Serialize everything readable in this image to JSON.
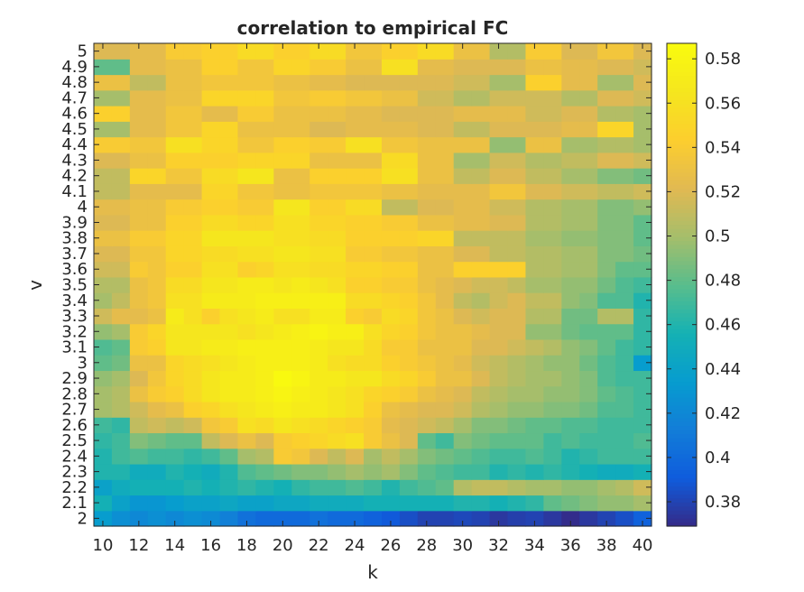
{
  "chart_data": {
    "type": "heatmap",
    "title": "correlation to empirical FC",
    "xlabel": "k",
    "ylabel": "v",
    "x": [
      10,
      11,
      12,
      13,
      14,
      15,
      16,
      17,
      18,
      19,
      20,
      21,
      22,
      23,
      24,
      25,
      26,
      27,
      28,
      29,
      30,
      31,
      32,
      33,
      34,
      35,
      36,
      37,
      38,
      39,
      40
    ],
    "x_tick_labels": [
      "10",
      "12",
      "14",
      "16",
      "18",
      "20",
      "22",
      "24",
      "26",
      "28",
      "30",
      "32",
      "34",
      "36",
      "38",
      "40"
    ],
    "y": [
      2,
      2.1,
      2.2,
      2.3,
      2.4,
      2.5,
      2.6,
      2.7,
      2.8,
      2.9,
      3,
      3.1,
      3.2,
      3.3,
      3.4,
      3.5,
      3.6,
      3.7,
      3.8,
      3.9,
      4,
      4.1,
      4.2,
      4.3,
      4.4,
      4.5,
      4.6,
      4.7,
      4.8,
      4.9,
      5
    ],
    "y_tick_labels": [
      "2",
      "2.1",
      "2.2",
      "2.3",
      "2.4",
      "2.5",
      "2.6",
      "2.7",
      "2.8",
      "2.9",
      "3",
      "3.1",
      "3.2",
      "3.3",
      "3.4",
      "3.5",
      "3.6",
      "3.7",
      "3.8",
      "3.9",
      "4",
      "4.1",
      "4.2",
      "4.3",
      "4.4",
      "4.5",
      "4.6",
      "4.7",
      "4.8",
      "4.9",
      "5"
    ],
    "colorbar": {
      "ticks": [
        0.38,
        0.4,
        0.42,
        0.44,
        0.46,
        0.48,
        0.5,
        0.52,
        0.54,
        0.56,
        0.58
      ],
      "tick_labels": [
        "0.38",
        "0.4",
        "0.42",
        "0.44",
        "0.46",
        "0.48",
        "0.5",
        "0.52",
        "0.54",
        "0.56",
        "0.58"
      ],
      "clim": [
        0.369,
        0.587
      ],
      "colormap": "parula"
    },
    "values": [
      [
        0.435,
        0.425,
        0.42,
        0.425,
        0.42,
        0.425,
        0.422,
        0.415,
        0.405,
        0.4,
        0.4,
        0.4,
        0.405,
        0.4,
        0.4,
        0.395,
        0.39,
        0.385,
        0.38,
        0.38,
        0.382,
        0.38,
        0.375,
        0.378,
        0.38,
        0.375,
        0.37,
        0.375,
        0.38,
        0.385,
        0.395
      ],
      [
        0.455,
        0.44,
        0.43,
        0.43,
        0.435,
        0.44,
        0.44,
        0.445,
        0.44,
        0.44,
        0.445,
        0.445,
        0.45,
        0.45,
        0.45,
        0.455,
        0.455,
        0.455,
        0.455,
        0.455,
        0.46,
        0.46,
        0.455,
        0.46,
        0.465,
        0.48,
        0.485,
        0.49,
        0.495,
        0.495,
        0.5
      ],
      [
        0.44,
        0.45,
        0.455,
        0.455,
        0.455,
        0.46,
        0.455,
        0.46,
        0.465,
        0.46,
        0.455,
        0.465,
        0.47,
        0.47,
        0.475,
        0.47,
        0.46,
        0.47,
        0.475,
        0.48,
        0.505,
        0.51,
        0.51,
        0.505,
        0.5,
        0.5,
        0.495,
        0.495,
        0.5,
        0.505,
        0.515
      ],
      [
        0.46,
        0.46,
        0.45,
        0.45,
        0.46,
        0.455,
        0.45,
        0.46,
        0.475,
        0.48,
        0.485,
        0.49,
        0.49,
        0.495,
        0.5,
        0.495,
        0.5,
        0.49,
        0.48,
        0.475,
        0.47,
        0.47,
        0.46,
        0.465,
        0.46,
        0.465,
        0.46,
        0.455,
        0.45,
        0.45,
        0.455
      ],
      [
        0.46,
        0.47,
        0.475,
        0.47,
        0.47,
        0.465,
        0.47,
        0.48,
        0.5,
        0.505,
        0.54,
        0.535,
        0.52,
        0.51,
        0.52,
        0.5,
        0.51,
        0.5,
        0.49,
        0.485,
        0.48,
        0.475,
        0.47,
        0.47,
        0.475,
        0.47,
        0.46,
        0.465,
        0.47,
        0.47,
        0.47
      ],
      [
        0.465,
        0.47,
        0.49,
        0.485,
        0.48,
        0.48,
        0.51,
        0.52,
        0.53,
        0.52,
        0.54,
        0.545,
        0.55,
        0.555,
        0.56,
        0.54,
        0.53,
        0.52,
        0.48,
        0.47,
        0.49,
        0.485,
        0.48,
        0.48,
        0.48,
        0.47,
        0.475,
        0.47,
        0.47,
        0.47,
        0.475
      ],
      [
        0.47,
        0.465,
        0.51,
        0.515,
        0.51,
        0.515,
        0.535,
        0.54,
        0.56,
        0.555,
        0.565,
        0.56,
        0.555,
        0.55,
        0.545,
        0.54,
        0.525,
        0.52,
        0.515,
        0.51,
        0.5,
        0.49,
        0.49,
        0.485,
        0.48,
        0.48,
        0.475,
        0.475,
        0.47,
        0.47,
        0.47
      ],
      [
        0.5,
        0.505,
        0.515,
        0.525,
        0.53,
        0.545,
        0.55,
        0.56,
        0.565,
        0.57,
        0.575,
        0.57,
        0.57,
        0.565,
        0.56,
        0.545,
        0.53,
        0.525,
        0.52,
        0.52,
        0.515,
        0.505,
        0.5,
        0.495,
        0.495,
        0.49,
        0.49,
        0.485,
        0.475,
        0.475,
        0.47
      ],
      [
        0.5,
        0.505,
        0.53,
        0.54,
        0.545,
        0.555,
        0.565,
        0.57,
        0.57,
        0.575,
        0.58,
        0.575,
        0.57,
        0.565,
        0.56,
        0.55,
        0.545,
        0.54,
        0.53,
        0.525,
        0.52,
        0.51,
        0.505,
        0.5,
        0.5,
        0.495,
        0.495,
        0.49,
        0.48,
        0.475,
        0.47
      ],
      [
        0.495,
        0.5,
        0.52,
        0.535,
        0.55,
        0.555,
        0.565,
        0.57,
        0.57,
        0.575,
        0.585,
        0.58,
        0.57,
        0.57,
        0.565,
        0.565,
        0.555,
        0.55,
        0.54,
        0.53,
        0.53,
        0.52,
        0.51,
        0.505,
        0.5,
        0.5,
        0.495,
        0.49,
        0.475,
        0.47,
        0.47
      ],
      [
        0.48,
        0.485,
        0.53,
        0.53,
        0.55,
        0.555,
        0.56,
        0.565,
        0.57,
        0.575,
        0.575,
        0.575,
        0.57,
        0.56,
        0.555,
        0.555,
        0.545,
        0.54,
        0.535,
        0.53,
        0.525,
        0.515,
        0.51,
        0.505,
        0.5,
        0.495,
        0.495,
        0.485,
        0.475,
        0.47,
        0.435
      ],
      [
        0.475,
        0.48,
        0.54,
        0.545,
        0.565,
        0.565,
        0.57,
        0.57,
        0.575,
        0.575,
        0.575,
        0.575,
        0.57,
        0.565,
        0.565,
        0.555,
        0.54,
        0.54,
        0.53,
        0.53,
        0.53,
        0.52,
        0.52,
        0.515,
        0.51,
        0.505,
        0.495,
        0.49,
        0.48,
        0.47,
        0.465
      ],
      [
        0.495,
        0.5,
        0.54,
        0.55,
        0.565,
        0.565,
        0.565,
        0.565,
        0.56,
        0.565,
        0.57,
        0.575,
        0.58,
        0.575,
        0.575,
        0.56,
        0.55,
        0.545,
        0.535,
        0.53,
        0.53,
        0.525,
        0.52,
        0.52,
        0.495,
        0.495,
        0.485,
        0.48,
        0.48,
        0.48,
        0.465
      ],
      [
        0.515,
        0.525,
        0.525,
        0.53,
        0.57,
        0.56,
        0.545,
        0.56,
        0.565,
        0.57,
        0.56,
        0.56,
        0.57,
        0.57,
        0.545,
        0.54,
        0.555,
        0.55,
        0.535,
        0.53,
        0.52,
        0.515,
        0.52,
        0.52,
        0.505,
        0.505,
        0.485,
        0.485,
        0.505,
        0.505,
        0.465
      ],
      [
        0.5,
        0.51,
        0.53,
        0.535,
        0.56,
        0.56,
        0.57,
        0.57,
        0.57,
        0.575,
        0.575,
        0.575,
        0.575,
        0.575,
        0.555,
        0.555,
        0.55,
        0.545,
        0.535,
        0.525,
        0.51,
        0.505,
        0.515,
        0.52,
        0.51,
        0.51,
        0.495,
        0.49,
        0.475,
        0.475,
        0.46
      ],
      [
        0.505,
        0.505,
        0.53,
        0.535,
        0.555,
        0.555,
        0.565,
        0.565,
        0.57,
        0.57,
        0.565,
        0.57,
        0.565,
        0.56,
        0.545,
        0.545,
        0.54,
        0.54,
        0.53,
        0.525,
        0.52,
        0.515,
        0.515,
        0.51,
        0.5,
        0.5,
        0.495,
        0.495,
        0.485,
        0.475,
        0.47
      ],
      [
        0.515,
        0.515,
        0.54,
        0.535,
        0.545,
        0.545,
        0.56,
        0.56,
        0.545,
        0.55,
        0.56,
        0.56,
        0.555,
        0.555,
        0.55,
        0.55,
        0.545,
        0.545,
        0.53,
        0.53,
        0.545,
        0.545,
        0.545,
        0.545,
        0.505,
        0.505,
        0.5,
        0.5,
        0.49,
        0.48,
        0.48
      ],
      [
        0.52,
        0.52,
        0.535,
        0.535,
        0.55,
        0.55,
        0.555,
        0.555,
        0.56,
        0.56,
        0.565,
        0.565,
        0.56,
        0.56,
        0.54,
        0.54,
        0.535,
        0.535,
        0.53,
        0.53,
        0.52,
        0.52,
        0.51,
        0.51,
        0.505,
        0.505,
        0.5,
        0.5,
        0.49,
        0.49,
        0.485
      ],
      [
        0.53,
        0.53,
        0.54,
        0.54,
        0.55,
        0.55,
        0.565,
        0.565,
        0.565,
        0.565,
        0.56,
        0.56,
        0.555,
        0.555,
        0.545,
        0.545,
        0.545,
        0.545,
        0.55,
        0.55,
        0.51,
        0.51,
        0.51,
        0.51,
        0.5,
        0.5,
        0.495,
        0.495,
        0.49,
        0.49,
        0.48
      ],
      [
        0.52,
        0.52,
        0.53,
        0.53,
        0.545,
        0.545,
        0.555,
        0.555,
        0.55,
        0.55,
        0.56,
        0.56,
        0.55,
        0.55,
        0.545,
        0.545,
        0.54,
        0.54,
        0.53,
        0.53,
        0.525,
        0.525,
        0.52,
        0.52,
        0.505,
        0.505,
        0.5,
        0.5,
        0.49,
        0.49,
        0.48
      ],
      [
        0.525,
        0.525,
        0.53,
        0.53,
        0.54,
        0.54,
        0.545,
        0.545,
        0.54,
        0.54,
        0.565,
        0.565,
        0.545,
        0.545,
        0.555,
        0.555,
        0.51,
        0.51,
        0.52,
        0.52,
        0.525,
        0.525,
        0.515,
        0.515,
        0.505,
        0.505,
        0.5,
        0.5,
        0.49,
        0.49,
        0.495
      ],
      [
        0.51,
        0.51,
        0.525,
        0.525,
        0.525,
        0.525,
        0.55,
        0.55,
        0.535,
        0.535,
        0.53,
        0.53,
        0.535,
        0.535,
        0.535,
        0.535,
        0.53,
        0.53,
        0.525,
        0.525,
        0.525,
        0.525,
        0.535,
        0.535,
        0.52,
        0.52,
        0.515,
        0.515,
        0.51,
        0.51,
        0.515
      ],
      [
        0.51,
        0.51,
        0.55,
        0.55,
        0.535,
        0.535,
        0.555,
        0.555,
        0.565,
        0.565,
        0.53,
        0.53,
        0.545,
        0.545,
        0.545,
        0.545,
        0.56,
        0.56,
        0.53,
        0.53,
        0.51,
        0.51,
        0.52,
        0.52,
        0.51,
        0.51,
        0.5,
        0.5,
        0.49,
        0.49,
        0.485
      ],
      [
        0.52,
        0.52,
        0.53,
        0.53,
        0.545,
        0.545,
        0.545,
        0.545,
        0.55,
        0.55,
        0.55,
        0.55,
        0.53,
        0.53,
        0.53,
        0.53,
        0.555,
        0.555,
        0.53,
        0.53,
        0.5,
        0.5,
        0.515,
        0.515,
        0.505,
        0.505,
        0.51,
        0.51,
        0.52,
        0.52,
        0.515
      ],
      [
        0.54,
        0.54,
        0.535,
        0.535,
        0.56,
        0.56,
        0.55,
        0.55,
        0.535,
        0.535,
        0.545,
        0.545,
        0.54,
        0.54,
        0.56,
        0.56,
        0.535,
        0.535,
        0.53,
        0.53,
        0.53,
        0.53,
        0.495,
        0.495,
        0.53,
        0.53,
        0.5,
        0.5,
        0.505,
        0.505,
        0.5
      ],
      [
        0.5,
        0.5,
        0.525,
        0.525,
        0.535,
        0.535,
        0.55,
        0.55,
        0.53,
        0.53,
        0.53,
        0.53,
        0.52,
        0.52,
        0.525,
        0.525,
        0.525,
        0.525,
        0.52,
        0.52,
        0.51,
        0.51,
        0.52,
        0.52,
        0.52,
        0.52,
        0.525,
        0.525,
        0.55,
        0.55,
        0.5
      ],
      [
        0.545,
        0.545,
        0.525,
        0.525,
        0.535,
        0.535,
        0.525,
        0.525,
        0.54,
        0.54,
        0.53,
        0.53,
        0.53,
        0.53,
        0.525,
        0.525,
        0.52,
        0.52,
        0.52,
        0.52,
        0.525,
        0.525,
        0.525,
        0.525,
        0.515,
        0.515,
        0.52,
        0.52,
        0.505,
        0.505,
        0.5
      ],
      [
        0.5,
        0.5,
        0.525,
        0.525,
        0.53,
        0.53,
        0.55,
        0.55,
        0.55,
        0.55,
        0.535,
        0.535,
        0.54,
        0.54,
        0.535,
        0.535,
        0.53,
        0.53,
        0.515,
        0.515,
        0.505,
        0.505,
        0.515,
        0.515,
        0.515,
        0.515,
        0.505,
        0.505,
        0.52,
        0.52,
        0.515
      ],
      [
        0.53,
        0.53,
        0.51,
        0.51,
        0.53,
        0.53,
        0.535,
        0.535,
        0.535,
        0.535,
        0.53,
        0.53,
        0.525,
        0.525,
        0.52,
        0.52,
        0.52,
        0.52,
        0.52,
        0.52,
        0.515,
        0.515,
        0.5,
        0.5,
        0.545,
        0.545,
        0.525,
        0.525,
        0.5,
        0.5,
        0.52
      ],
      [
        0.48,
        0.48,
        0.525,
        0.525,
        0.53,
        0.53,
        0.545,
        0.545,
        0.535,
        0.535,
        0.55,
        0.55,
        0.54,
        0.54,
        0.53,
        0.53,
        0.56,
        0.56,
        0.525,
        0.525,
        0.52,
        0.52,
        0.52,
        0.52,
        0.53,
        0.53,
        0.525,
        0.525,
        0.52,
        0.52,
        0.515
      ],
      [
        0.52,
        0.52,
        0.525,
        0.525,
        0.54,
        0.54,
        0.545,
        0.545,
        0.555,
        0.555,
        0.545,
        0.545,
        0.555,
        0.555,
        0.535,
        0.535,
        0.545,
        0.545,
        0.555,
        0.555,
        0.53,
        0.53,
        0.505,
        0.505,
        0.54,
        0.54,
        0.52,
        0.52,
        0.535,
        0.535,
        0.52
      ]
    ]
  }
}
